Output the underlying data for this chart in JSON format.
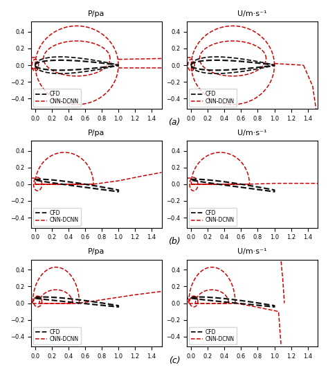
{
  "titles_left": [
    "P/pa",
    "P/pa",
    "P/pa"
  ],
  "titles_right": [
    "U/m·s⁻¹",
    "U/m·s⁻¹",
    "U/m·s⁻¹"
  ],
  "row_labels": [
    "(a)",
    "(b)",
    "(c)"
  ],
  "xlim": [
    -0.05,
    1.52
  ],
  "ylim": [
    -0.52,
    0.52
  ],
  "xticks": [
    0.0,
    0.2,
    0.4,
    0.6,
    0.8,
    1.0,
    1.2,
    1.4
  ],
  "yticks": [
    -0.4,
    -0.2,
    0.0,
    0.2,
    0.4
  ],
  "cfd_color": "#111111",
  "cnn_color": "#cc0000",
  "background": "#ffffff",
  "lw_cfd": 1.6,
  "lw_cnn": 1.1,
  "legend_fontsize": 5.5,
  "title_fontsize": 8,
  "tick_labelsize": 6
}
